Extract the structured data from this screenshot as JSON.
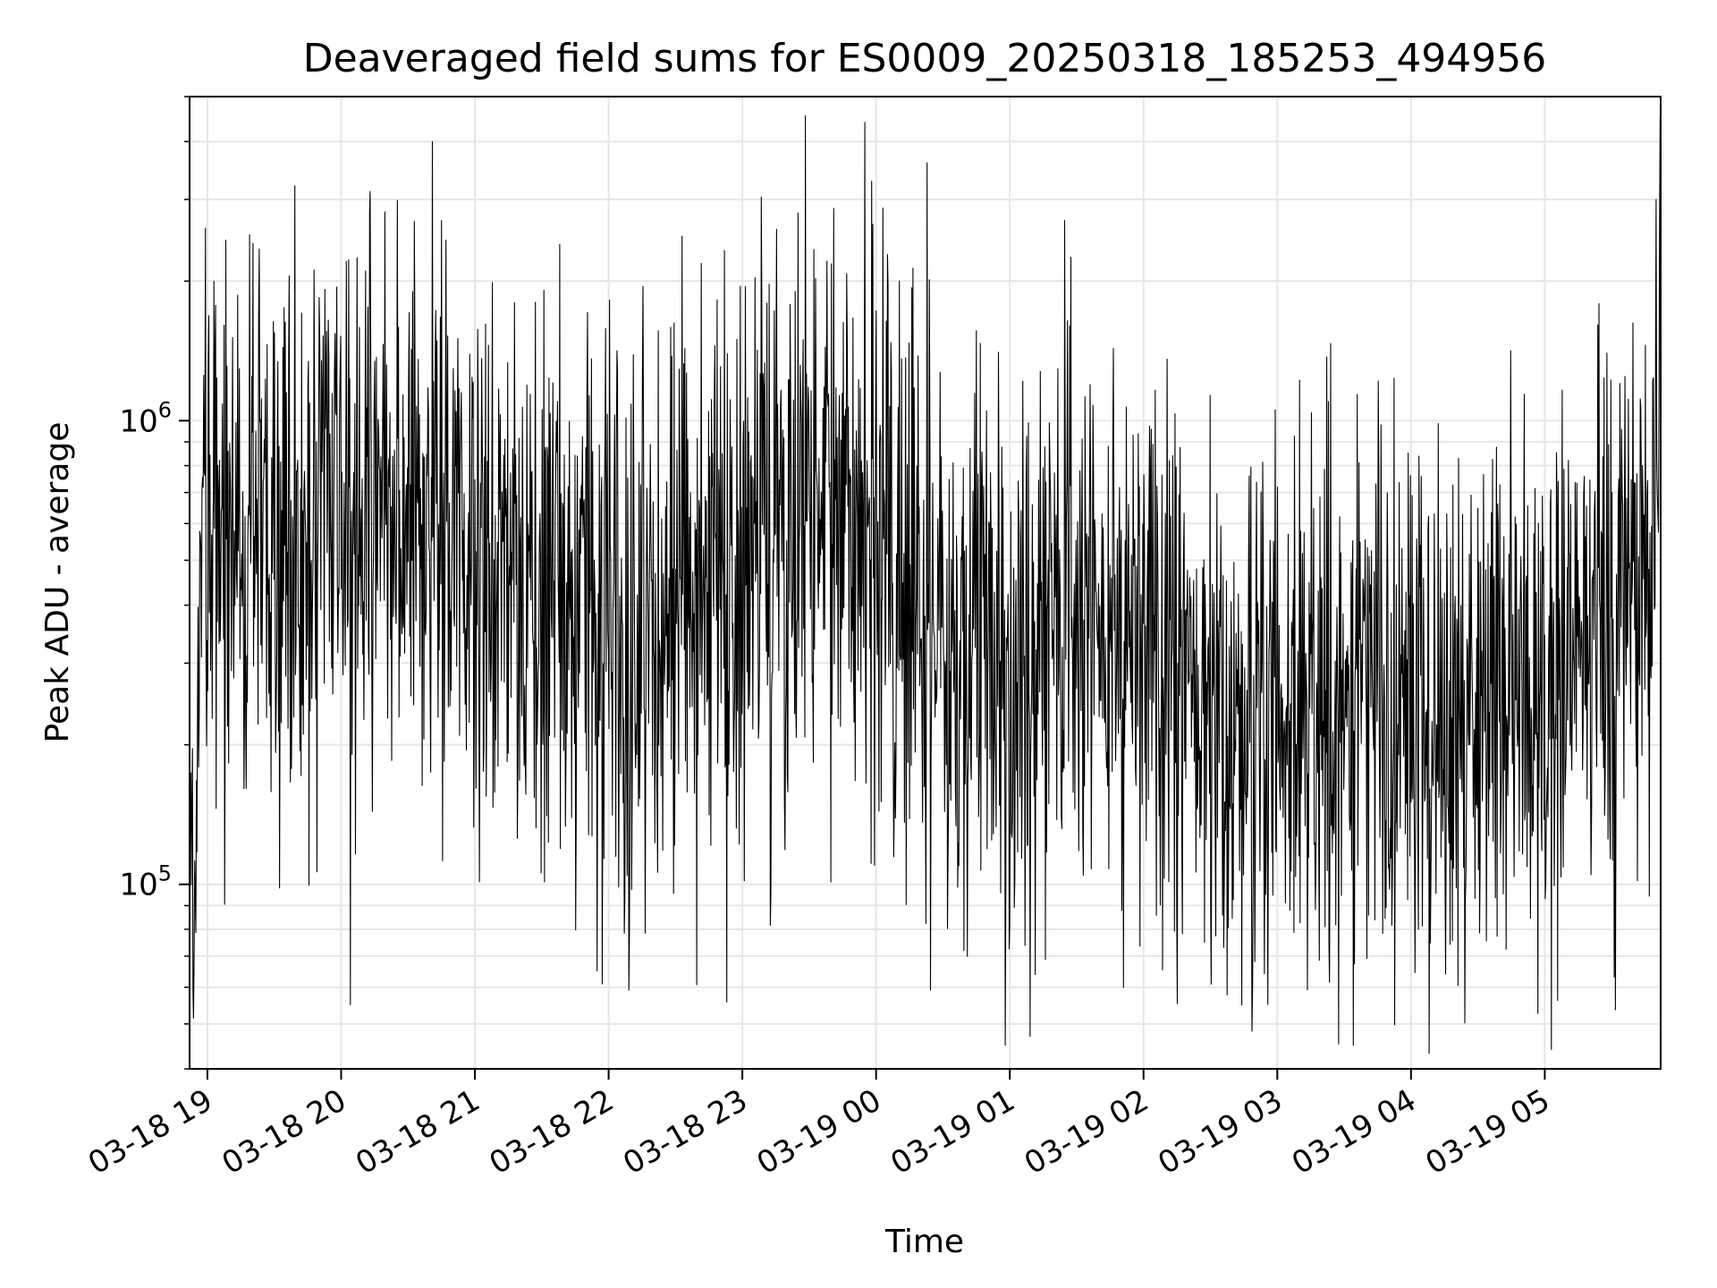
{
  "chart_data": {
    "type": "line",
    "title": "Deaveraged field sums for ES0009_20250318_185253_494956",
    "xlabel": "Time",
    "ylabel": "Peak ADU - average",
    "yscale": "log",
    "ylim": [
      40000,
      5000000
    ],
    "xlim": [
      "2025-03-18 18:52",
      "2025-03-19 05:52"
    ],
    "grid": true,
    "line_color": "#000000",
    "grid_color": "#e6e6e6",
    "x_ticks": [
      {
        "value": "2025-03-18 19:00",
        "label": "03-18 19"
      },
      {
        "value": "2025-03-18 20:00",
        "label": "03-18 20"
      },
      {
        "value": "2025-03-18 21:00",
        "label": "03-18 21"
      },
      {
        "value": "2025-03-18 22:00",
        "label": "03-18 22"
      },
      {
        "value": "2025-03-18 23:00",
        "label": "03-18 23"
      },
      {
        "value": "2025-03-19 00:00",
        "label": "03-19 00"
      },
      {
        "value": "2025-03-19 01:00",
        "label": "03-19 01"
      },
      {
        "value": "2025-03-19 02:00",
        "label": "03-19 02"
      },
      {
        "value": "2025-03-19 03:00",
        "label": "03-19 03"
      },
      {
        "value": "2025-03-19 04:00",
        "label": "03-19 04"
      },
      {
        "value": "2025-03-19 05:00",
        "label": "03-19 05"
      }
    ],
    "y_ticks": [
      {
        "value": 100000,
        "base": "10",
        "exp": "5"
      },
      {
        "value": 1000000,
        "base": "10",
        "exp": "6"
      }
    ],
    "envelope": {
      "x": [
        "2025-03-18 18:52",
        "2025-03-18 18:55",
        "2025-03-18 18:58",
        "2025-03-18 19:05",
        "2025-03-18 19:20",
        "2025-03-18 19:40",
        "2025-03-18 20:00",
        "2025-03-18 20:30",
        "2025-03-18 21:00",
        "2025-03-18 21:30",
        "2025-03-18 22:00",
        "2025-03-18 22:30",
        "2025-03-18 23:00",
        "2025-03-18 23:30",
        "2025-03-19 00:00",
        "2025-03-19 00:30",
        "2025-03-19 01:00",
        "2025-03-19 01:30",
        "2025-03-19 02:00",
        "2025-03-19 02:30",
        "2025-03-19 03:00",
        "2025-03-19 03:30",
        "2025-03-19 04:00",
        "2025-03-19 04:30",
        "2025-03-19 05:00",
        "2025-03-19 05:30",
        "2025-03-19 05:45",
        "2025-03-19 05:52"
      ],
      "y": [
        70000,
        90000,
        650000,
        620000,
        550000,
        520000,
        580000,
        700000,
        500000,
        400000,
        350000,
        420000,
        450000,
        700000,
        650000,
        300000,
        280000,
        450000,
        380000,
        240000,
        230000,
        260000,
        250000,
        220000,
        270000,
        320000,
        500000,
        1200000
      ]
    },
    "spikes": [
      {
        "x": "2025-03-18 18:59",
        "y": 2600000
      },
      {
        "x": "2025-03-18 19:03",
        "y": 2000000
      },
      {
        "x": "2025-03-18 20:41",
        "y": 4000000
      },
      {
        "x": "2025-03-18 20:45",
        "y": 2700000
      },
      {
        "x": "2025-03-18 21:38",
        "y": 2400000
      },
      {
        "x": "2025-03-18 22:33",
        "y": 2500000
      },
      {
        "x": "2025-03-18 23:55",
        "y": 4400000
      },
      {
        "x": "2025-03-19 00:23",
        "y": 3600000
      },
      {
        "x": "2025-03-19 05:50",
        "y": 3000000
      },
      {
        "x": "2025-03-18 20:04",
        "y": 55000
      },
      {
        "x": "2025-03-19 01:09",
        "y": 47000
      },
      {
        "x": "2025-03-19 03:34",
        "y": 45000
      },
      {
        "x": "2025-03-18 18:52",
        "y": 48000
      }
    ]
  }
}
